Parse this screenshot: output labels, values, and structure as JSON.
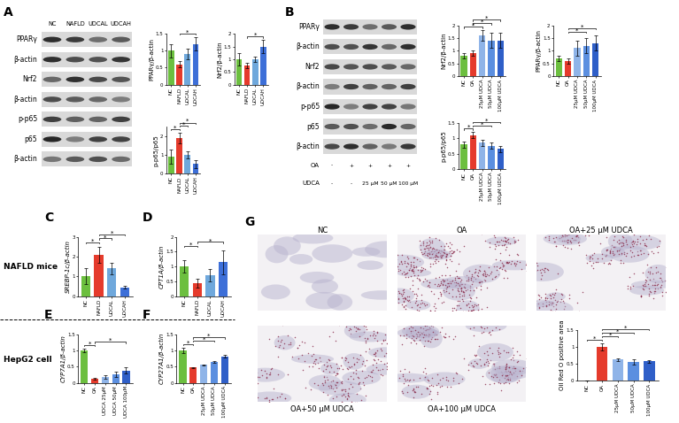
{
  "panel_letters": [
    "A",
    "B",
    "C",
    "D",
    "E",
    "F",
    "G"
  ],
  "group_labels": [
    "NAFLD mice",
    "HepG2 cell"
  ],
  "significance_mark": "*",
  "blots": [
    {
      "rows": [
        "PPARγ",
        "β-actin",
        "Nrf2",
        "β-actin",
        "p-p65",
        "p65",
        "β-actin"
      ],
      "lanes": [
        "NC",
        "NAFLD",
        "UDCAL",
        "UDCAH"
      ]
    },
    {
      "rows": [
        "PPARγ",
        "β-actin",
        "Nrf2",
        "β-actin",
        "p-p65",
        "p65",
        "β-actin"
      ],
      "treatments": [
        {
          "name": "OA",
          "values": [
            "-",
            "+",
            "+",
            "+",
            "+"
          ]
        },
        {
          "name": "UDCA",
          "values": [
            "-",
            "-",
            "25 μM",
            "50 μM",
            "100 μM"
          ]
        }
      ]
    }
  ],
  "chart_data": [
    {
      "type": "bar",
      "ylabel": "PPARγ/β-actin",
      "categories": [
        "NC",
        "NAFLD",
        "UDCAL",
        "UDCAH"
      ],
      "values": [
        1.0,
        0.6,
        0.9,
        1.2
      ],
      "errors": [
        0.2,
        0.1,
        0.15,
        0.2
      ],
      "colors": [
        "#6cbf3f",
        "#e53b2c",
        "#6fa8dc",
        "#3d6fd8"
      ],
      "ylim": [
        0,
        1.5
      ],
      "yticks": [
        0,
        0.5,
        1,
        1.5
      ],
      "significance": [
        [
          1,
          3
        ]
      ]
    },
    {
      "type": "bar",
      "ylabel": "Nrf2/β-actin",
      "categories": [
        "NC",
        "NAFLD",
        "UDCAL",
        "UDCAH"
      ],
      "values": [
        1.0,
        0.75,
        1.0,
        1.5
      ],
      "errors": [
        0.25,
        0.1,
        0.1,
        0.25
      ],
      "colors": [
        "#6cbf3f",
        "#e53b2c",
        "#6fa8dc",
        "#3d6fd8"
      ],
      "ylim": [
        0,
        2
      ],
      "yticks": [
        0,
        0.5,
        1,
        1.5,
        2
      ],
      "significance": [
        [
          1,
          3
        ]
      ]
    },
    {
      "type": "bar",
      "ylabel": "p-p65/p65",
      "categories": [
        "NC",
        "NAFLD",
        "UDCAL",
        "UDCAH"
      ],
      "values": [
        0.9,
        1.9,
        1.0,
        0.5
      ],
      "errors": [
        0.4,
        0.3,
        0.2,
        0.2
      ],
      "colors": [
        "#6cbf3f",
        "#e53b2c",
        "#6fa8dc",
        "#3d6fd8"
      ],
      "ylim": [
        0,
        2.5
      ],
      "yticks": [
        0,
        1,
        2
      ],
      "significance": [
        [
          0,
          1
        ],
        [
          1,
          2
        ],
        [
          1,
          3
        ]
      ]
    },
    {
      "type": "bar",
      "ylabel": "Nrf2/β-actin",
      "categories": [
        "NC",
        "OA",
        "25μM UDCA",
        "50μM UDCA",
        "100μM UDCA"
      ],
      "values": [
        0.8,
        0.9,
        1.6,
        1.4,
        1.4
      ],
      "errors": [
        0.1,
        0.1,
        0.2,
        0.3,
        0.3
      ],
      "colors": [
        "#6cbf3f",
        "#e53b2c",
        "#8fb4e8",
        "#5b8fe0",
        "#2f5fc8"
      ],
      "ylim": [
        0,
        2
      ],
      "yticks": [
        0,
        0.5,
        1,
        1.5,
        2
      ],
      "significance": [
        [
          0,
          2
        ],
        [
          1,
          3
        ],
        [
          1,
          4
        ]
      ]
    },
    {
      "type": "bar",
      "ylabel": "PPARγ/β-actin",
      "categories": [
        "NC",
        "OA",
        "25μM UDCA",
        "50μM UDCA",
        "100μM UDCA"
      ],
      "values": [
        0.7,
        0.6,
        1.1,
        1.2,
        1.3
      ],
      "errors": [
        0.1,
        0.1,
        0.3,
        0.3,
        0.3
      ],
      "colors": [
        "#6cbf3f",
        "#e53b2c",
        "#8fb4e8",
        "#5b8fe0",
        "#2f5fc8"
      ],
      "ylim": [
        0,
        2
      ],
      "yticks": [
        0,
        0.5,
        1,
        1.5,
        2
      ],
      "significance": [
        [
          1,
          3
        ],
        [
          1,
          4
        ]
      ]
    },
    {
      "type": "bar",
      "ylabel": "p-p65/p65",
      "categories": [
        "NC",
        "OA",
        "25μM UDCA",
        "50μM UDCA",
        "100μM UDCA"
      ],
      "values": [
        0.8,
        1.1,
        0.85,
        0.75,
        0.65
      ],
      "errors": [
        0.1,
        0.1,
        0.1,
        0.1,
        0.1
      ],
      "colors": [
        "#6cbf3f",
        "#e53b2c",
        "#8fb4e8",
        "#5b8fe0",
        "#2f5fc8"
      ],
      "ylim": [
        0,
        1.5
      ],
      "yticks": [
        0,
        0.5,
        1,
        1.5
      ],
      "significance": [
        [
          0,
          1
        ],
        [
          1,
          3
        ],
        [
          1,
          4
        ]
      ]
    },
    {
      "type": "bar",
      "ylabel": "SREBP-1c/β-actin",
      "categories": [
        "NC",
        "NAFLD",
        "UDCAL",
        "UDCAH"
      ],
      "values": [
        1.0,
        2.1,
        1.4,
        0.45
      ],
      "errors": [
        0.4,
        0.4,
        0.3,
        0.05
      ],
      "colors": [
        "#6cbf3f",
        "#e53b2c",
        "#6fa8dc",
        "#3d6fd8"
      ],
      "ylim": [
        0,
        3
      ],
      "yticks": [
        0,
        1,
        2,
        3
      ],
      "significance": [
        [
          0,
          1
        ],
        [
          1,
          2
        ],
        [
          1,
          3
        ]
      ]
    },
    {
      "type": "bar",
      "ylabel": "CPT1A/β-actin",
      "categories": [
        "NC",
        "NAFLD",
        "UDCAL",
        "UDCAH"
      ],
      "values": [
        1.0,
        0.45,
        0.7,
        1.15
      ],
      "errors": [
        0.2,
        0.15,
        0.2,
        0.4
      ],
      "colors": [
        "#6cbf3f",
        "#e53b2c",
        "#6fa8dc",
        "#3d6fd8"
      ],
      "ylim": [
        0,
        2
      ],
      "yticks": [
        0,
        0.5,
        1,
        1.5,
        2
      ],
      "significance": [
        [
          0,
          1
        ],
        [
          1,
          3
        ]
      ]
    },
    {
      "type": "bar",
      "ylabel": "CYP7A1/β-actin",
      "categories": [
        "NC",
        "OA",
        "UDCA 25μM",
        "UDCA 50μM",
        "UDCA 100μM"
      ],
      "values": [
        1.0,
        0.12,
        0.18,
        0.25,
        0.38
      ],
      "errors": [
        0.05,
        0.02,
        0.05,
        0.08,
        0.1
      ],
      "colors": [
        "#6cbf3f",
        "#e53b2c",
        "#8fb4e8",
        "#5b8fe0",
        "#2f5fc8"
      ],
      "ylim": [
        0,
        1.5
      ],
      "yticks": [
        0,
        0.5,
        1,
        1.5
      ],
      "significance": [
        [
          0,
          1
        ],
        [
          1,
          4
        ]
      ]
    },
    {
      "type": "bar",
      "ylabel": "CYP27A1/β-actin",
      "categories": [
        "NC",
        "OA",
        "25μM UDCA",
        "50μM UDCA",
        "100μM UDCA"
      ],
      "values": [
        1.0,
        0.47,
        0.55,
        0.65,
        0.82
      ],
      "errors": [
        0.08,
        0.02,
        0.02,
        0.03,
        0.03
      ],
      "colors": [
        "#6cbf3f",
        "#e53b2c",
        "#8fb4e8",
        "#5b8fe0",
        "#2f5fc8"
      ],
      "ylim": [
        0,
        1.5
      ],
      "yticks": [
        0,
        0.5,
        1,
        1.5
      ],
      "significance": [
        [
          0,
          1
        ],
        [
          1,
          3
        ],
        [
          1,
          4
        ]
      ]
    },
    {
      "type": "bar",
      "ylabel": "Oil Red O positive area",
      "categories": [
        "NC",
        "OA",
        "25μM UDCA",
        "50μM UDCA",
        "100μM UDCA"
      ],
      "values": [
        0.01,
        1.0,
        0.62,
        0.55,
        0.57
      ],
      "errors": [
        0,
        0.1,
        0.03,
        0.08,
        0.03
      ],
      "colors": [
        "#6cbf3f",
        "#e53b2c",
        "#8fb4e8",
        "#5b8fe0",
        "#2f5fc8"
      ],
      "ylim": [
        0,
        1.5
      ],
      "yticks": [
        0,
        0.5,
        1,
        1.5
      ],
      "significance": [
        [
          0,
          1
        ],
        [
          1,
          2
        ],
        [
          1,
          3
        ],
        [
          1,
          4
        ]
      ]
    }
  ],
  "micrographs": [
    "NC",
    "OA",
    "OA+25 μM UDCA",
    "OA+50 μM UDCA",
    "OA+100 μM UDCA"
  ]
}
